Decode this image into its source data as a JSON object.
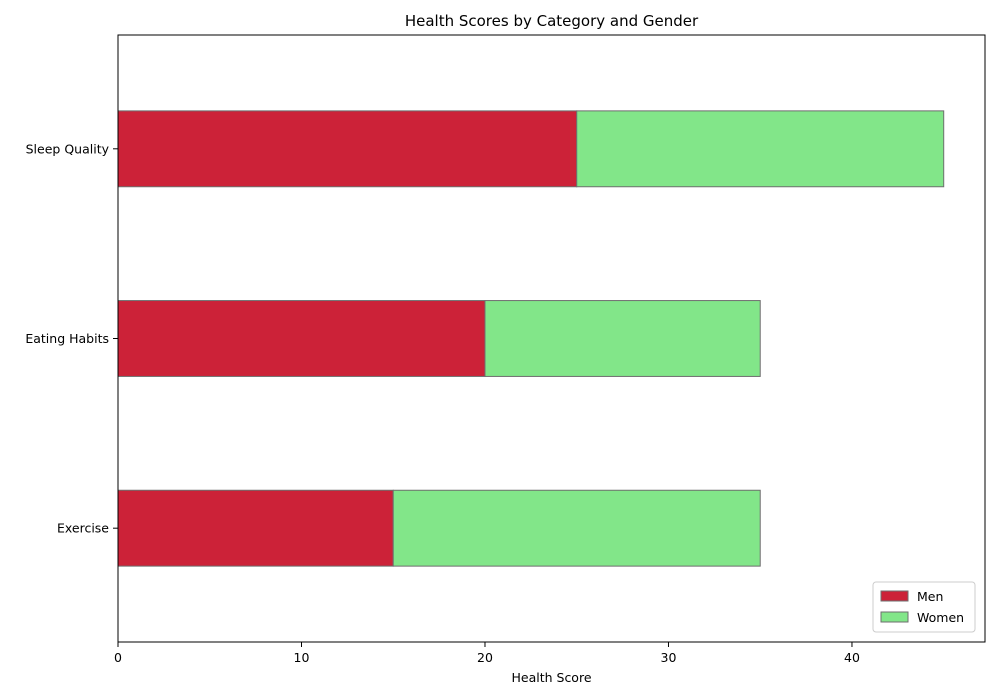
{
  "chart_data": {
    "type": "bar",
    "orientation": "horizontal",
    "stacked": true,
    "title": "Health Scores by Category and Gender",
    "xlabel": "Health Score",
    "ylabel": "",
    "categories": [
      "Exercise",
      "Eating Habits",
      "Sleep Quality"
    ],
    "series": [
      {
        "name": "Men",
        "values": [
          15,
          20,
          25
        ],
        "color": "#cc2238"
      },
      {
        "name": "Women",
        "values": [
          20,
          15,
          20
        ],
        "color": "#82e689"
      }
    ],
    "xlim": [
      0,
      47.25
    ],
    "xticks": [
      0,
      10,
      20,
      30,
      40
    ],
    "grid": false,
    "legend_position": "bottom-right",
    "edge_color": "#6e6e6e"
  }
}
